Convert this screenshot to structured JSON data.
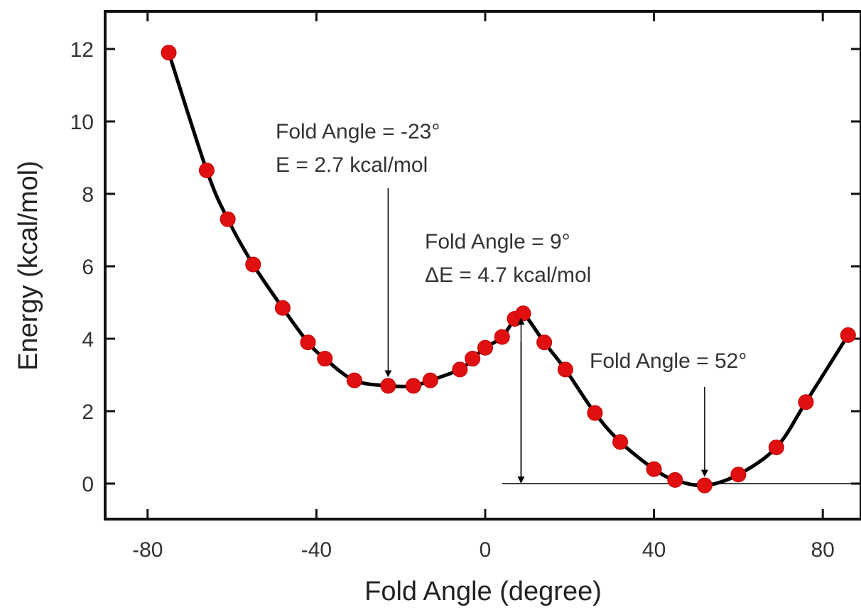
{
  "chart_data": {
    "type": "line",
    "title": "",
    "xlabel": "Fold Angle (degree)",
    "ylabel": "Energy (kcal/mol)",
    "xlim": [
      -90,
      90
    ],
    "ylim": [
      -1,
      13
    ],
    "xticks": [
      -80,
      -40,
      0,
      40,
      80
    ],
    "yticks": [
      0,
      2,
      4,
      6,
      8,
      10,
      12
    ],
    "grid": false,
    "legend": "none",
    "marker_color": "#e01010",
    "line_color": "#000000",
    "series": [
      {
        "x": [
          -75,
          -66,
          -61,
          -55,
          -48,
          -42,
          -38,
          -31,
          -23,
          -17,
          -13,
          -6,
          -3,
          0,
          4,
          7,
          9,
          14,
          19,
          26,
          32,
          40,
          45,
          52,
          60,
          69,
          76,
          86
        ],
        "y": [
          11.9,
          8.65,
          7.3,
          6.05,
          4.85,
          3.9,
          3.45,
          2.85,
          2.7,
          2.7,
          2.85,
          3.15,
          3.45,
          3.75,
          4.05,
          4.55,
          4.7,
          3.9,
          3.15,
          1.95,
          1.15,
          0.4,
          0.1,
          -0.05,
          0.25,
          1.0,
          2.25,
          4.1
        ]
      }
    ],
    "annotations": [
      {
        "lines": [
          "Fold Angle = -23°",
          "E = 2.7 kcal/mol"
        ],
        "x": -23,
        "y": 2.7
      },
      {
        "lines": [
          "Fold Angle = 9°",
          "ΔE = 4.7 kcal/mol"
        ],
        "x": 9,
        "y": 4.7
      },
      {
        "lines": [
          "Fold Angle = 52°"
        ],
        "x": 52,
        "y": -0.05
      }
    ]
  }
}
